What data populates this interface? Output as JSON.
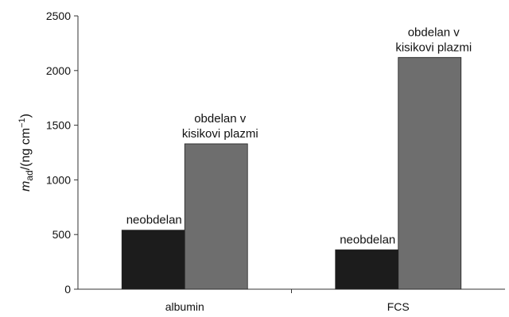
{
  "chart_data": {
    "type": "bar",
    "categories": [
      "albumin",
      "FCS"
    ],
    "series": [
      {
        "values": [
          540,
          360
        ],
        "color": "#1c1c1c",
        "labels": [
          "neobdelan",
          "neobdelan"
        ]
      },
      {
        "values": [
          1330,
          2120
        ],
        "color": "#6e6e6e",
        "labels": [
          "obdelan v\nkisikovi plazmi",
          "obdelan v\nkisikovi plazmi"
        ]
      }
    ],
    "ylabel": {
      "symbol": "m",
      "subscript": "ad",
      "unit": "/(ng cm",
      "superscript": "−1",
      "close": ")"
    },
    "ylim": [
      0,
      2500
    ],
    "yticks": [
      "0",
      "500",
      "1000",
      "1500",
      "2000",
      "2500"
    ],
    "grid": false
  }
}
